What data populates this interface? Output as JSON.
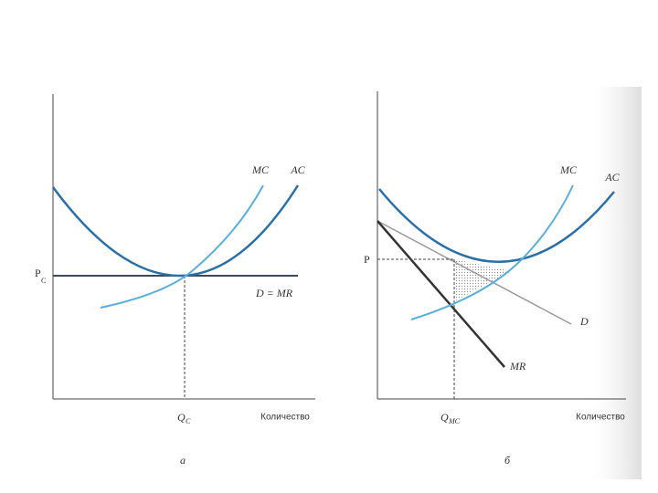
{
  "panels": [
    {
      "mc": "MC",
      "ac": "AC",
      "price": "P",
      "price_sub": "C",
      "demand": "D = MR",
      "quantity": "Q",
      "quantity_sub": "C",
      "x_axis": "Количество",
      "caption": "а"
    },
    {
      "mc": "MC",
      "ac": "AC",
      "price": "P",
      "demand": "D",
      "mr": "MR",
      "quantity": "Q",
      "quantity_sub": "MC",
      "x_axis": "Количество",
      "caption": "б"
    }
  ]
}
